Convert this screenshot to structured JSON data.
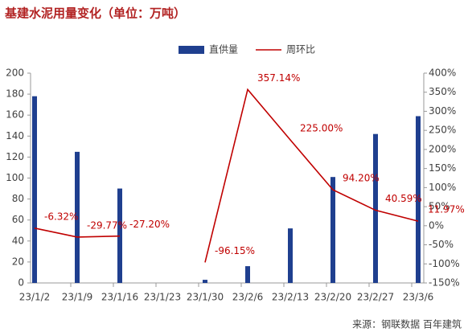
{
  "chart_data": {
    "type": "bar_line",
    "title": "基建水泥用量变化（单位：万吨）",
    "source": "来源：钢联数据 百年建筑",
    "categories": [
      "23/1/2",
      "23/1/9",
      "23/1/16",
      "23/1/23",
      "23/1/30",
      "23/2/6",
      "23/2/13",
      "23/2/20",
      "23/2/27",
      "23/3/6"
    ],
    "series": [
      {
        "name": "直供量",
        "type": "bar",
        "color": "#1f3f8f",
        "values": [
          178,
          125,
          90,
          0,
          3,
          16,
          52,
          101,
          142,
          159
        ]
      },
      {
        "name": "周环比",
        "type": "line",
        "axis": "y2",
        "color": "#c00000",
        "values": [
          -6.32,
          -29.77,
          -27.2,
          null,
          -96.15,
          357.14,
          225.0,
          94.2,
          40.59,
          11.97
        ],
        "value_labels": [
          "-6.32%",
          "-29.77%",
          "-27.20%",
          null,
          "-96.15%",
          "357.14%",
          "225.00%",
          "94.20%",
          "40.59%",
          "11.97%"
        ]
      }
    ],
    "ylim": [
      0,
      200
    ],
    "yticks": [
      0,
      20,
      40,
      60,
      80,
      100,
      120,
      140,
      160,
      180,
      200
    ],
    "y2lim": [
      -150,
      400
    ],
    "y2ticks": [
      {
        "value": -150,
        "label": "-150%"
      },
      {
        "value": -100,
        "label": "-100%"
      },
      {
        "value": -50,
        "label": "-50%"
      },
      {
        "value": 0,
        "label": "0%"
      },
      {
        "value": 50,
        "label": "50%"
      },
      {
        "value": 100,
        "label": "100%"
      },
      {
        "value": 150,
        "label": "150%"
      },
      {
        "value": 200,
        "label": "200%"
      },
      {
        "value": 250,
        "label": "250%"
      },
      {
        "value": 300,
        "label": "300%"
      },
      {
        "value": 350,
        "label": "350%"
      },
      {
        "value": 400,
        "label": "400%"
      }
    ],
    "legend": "top"
  }
}
